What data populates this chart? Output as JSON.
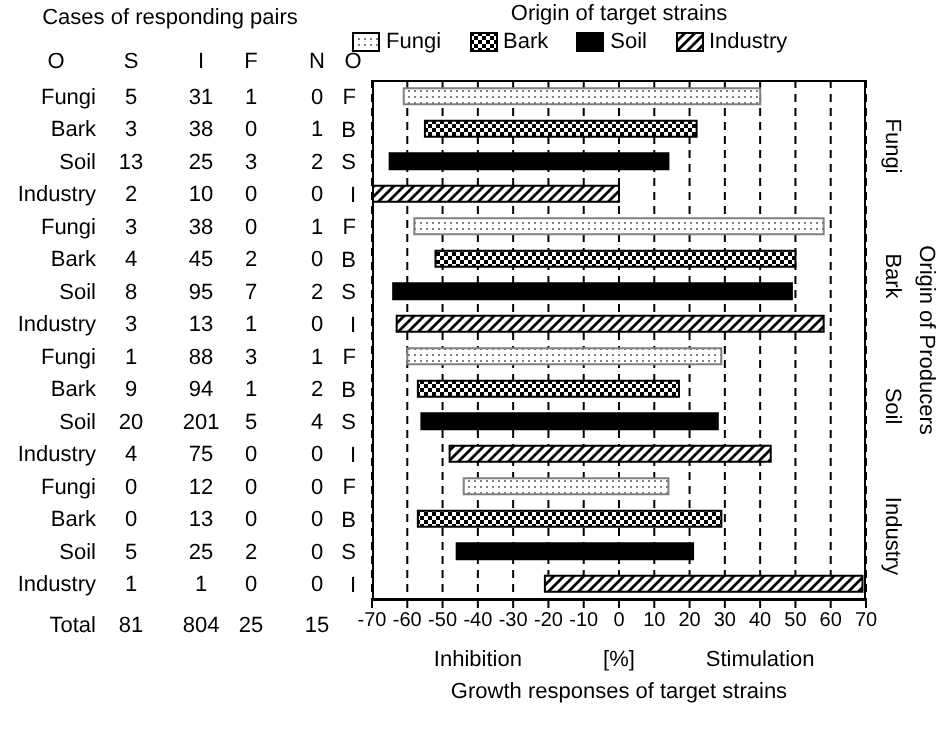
{
  "chart_data": {
    "type": "bar",
    "orientation": "horizontal",
    "legend_title": "Origin of target strains",
    "xlabel": "Growth responses of target strains",
    "categories": [
      "F",
      "B",
      "S",
      "I",
      "F",
      "B",
      "S",
      "I",
      "F",
      "B",
      "S",
      "I",
      "F",
      "B",
      "S",
      "I"
    ],
    "series": [
      {
        "name": "Fungi",
        "color": "#808080",
        "base": [
          -61,
          null,
          null,
          null,
          -58,
          null,
          null,
          null,
          -60,
          null,
          null,
          null,
          -44,
          null,
          null,
          null
        ],
        "values": [
          101,
          null,
          null,
          null,
          116,
          null,
          null,
          null,
          89,
          null,
          null,
          null,
          58,
          null,
          null,
          null
        ]
      },
      {
        "name": "Bark",
        "color": "#000000",
        "base": [
          null,
          -55,
          null,
          null,
          null,
          -52,
          null,
          null,
          null,
          -57,
          null,
          null,
          null,
          -57,
          null,
          null
        ],
        "values": [
          null,
          77,
          null,
          null,
          null,
          102,
          null,
          null,
          null,
          74,
          null,
          null,
          null,
          86,
          null,
          null
        ]
      },
      {
        "name": "Soil",
        "color": "#000000",
        "base": [
          null,
          null,
          -65,
          null,
          null,
          null,
          -64,
          null,
          null,
          null,
          -56,
          null,
          null,
          null,
          -46,
          null
        ],
        "values": [
          null,
          null,
          79,
          null,
          null,
          null,
          113,
          null,
          null,
          null,
          84,
          null,
          null,
          null,
          67,
          null
        ]
      },
      {
        "name": "Industry",
        "color": "#000000",
        "base": [
          null,
          null,
          null,
          -70,
          null,
          null,
          null,
          -63,
          null,
          null,
          null,
          -48,
          null,
          null,
          null,
          -21
        ],
        "values": [
          null,
          null,
          null,
          70,
          null,
          null,
          null,
          121,
          null,
          null,
          null,
          91,
          null,
          null,
          null,
          90
        ]
      }
    ],
    "xlim": [
      -70,
      70
    ],
    "xticks": [
      -70,
      -60,
      -50,
      -40,
      -30,
      -20,
      -10,
      0,
      10,
      20,
      30,
      40,
      50,
      60,
      70
    ],
    "grid": "x",
    "legend": "top",
    "annotations": [
      "Inhibition",
      "[%]",
      "Stimulation",
      "Cases of responding pairs",
      "Origin of Producers",
      "Fungi",
      "Bark",
      "Soil",
      "Industry",
      "O S I F N O",
      "Fungi 5 31 1 0",
      "Bark 3 38 0 1",
      "Soil 13 25 3 2",
      "Industry 2 10 0 0",
      "Fungi 3 38 0 1",
      "Bark 4 45 2 0",
      "Soil 8 95 7 2",
      "Industry 3 13 1 0",
      "Fungi 1 88 3 1",
      "Bark 9 94 1 2",
      "Soil 20 201 5 4",
      "Industry 4 75 0 0",
      "Fungi 0 12 0 0",
      "Bark 0 13 0 0",
      "Soil 5 25 2 0",
      "Industry 1 1 0 0",
      "Total 81 804 25 15"
    ]
  }
}
